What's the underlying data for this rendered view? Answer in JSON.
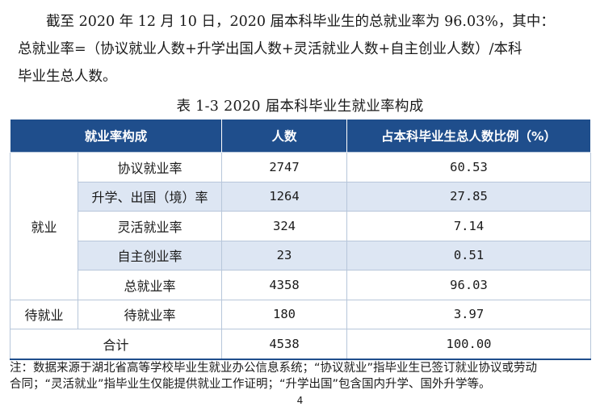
{
  "paragraph": {
    "line1": "截至 2020 年 12 月 10 日，2020 届本科毕业生的总就业率为 96.03%，其中：",
    "line2": "总就业率=（协议就业人数+升学出国人数+灵活就业人数+自主创业人数）/本科",
    "line3": "毕业生总人数。"
  },
  "table": {
    "caption": "表 1-3 2020 届本科毕业生就业率构成",
    "headers": [
      "就业率构成",
      "人数",
      "占本科毕业生总人数比例（%）"
    ],
    "group_employed": "就业",
    "group_waiting": "待就业",
    "rows": [
      {
        "label": "协议就业率",
        "count": "2747",
        "pct": "60.53"
      },
      {
        "label": "升学、出国（境）率",
        "count": "1264",
        "pct": "27.85"
      },
      {
        "label": "灵活就业率",
        "count": "324",
        "pct": "7.14"
      },
      {
        "label": "自主创业率",
        "count": "23",
        "pct": "0.51"
      },
      {
        "label": "总就业率",
        "count": "4358",
        "pct": "96.03"
      },
      {
        "label": "待就业率",
        "count": "180",
        "pct": "3.97"
      }
    ],
    "total": {
      "label": "合计",
      "count": "4538",
      "pct": "100.00"
    }
  },
  "note": {
    "line1": "注：数据来源于湖北省高等学校毕业生就业办公信息系统；“协议就业”指毕业生已签订就业协议或劳动",
    "line2": "合同；“灵活就业”指毕业生仅能提供就业工作证明；“升学出国”包含国内升学、国外升学等。"
  },
  "page_number": "4"
}
